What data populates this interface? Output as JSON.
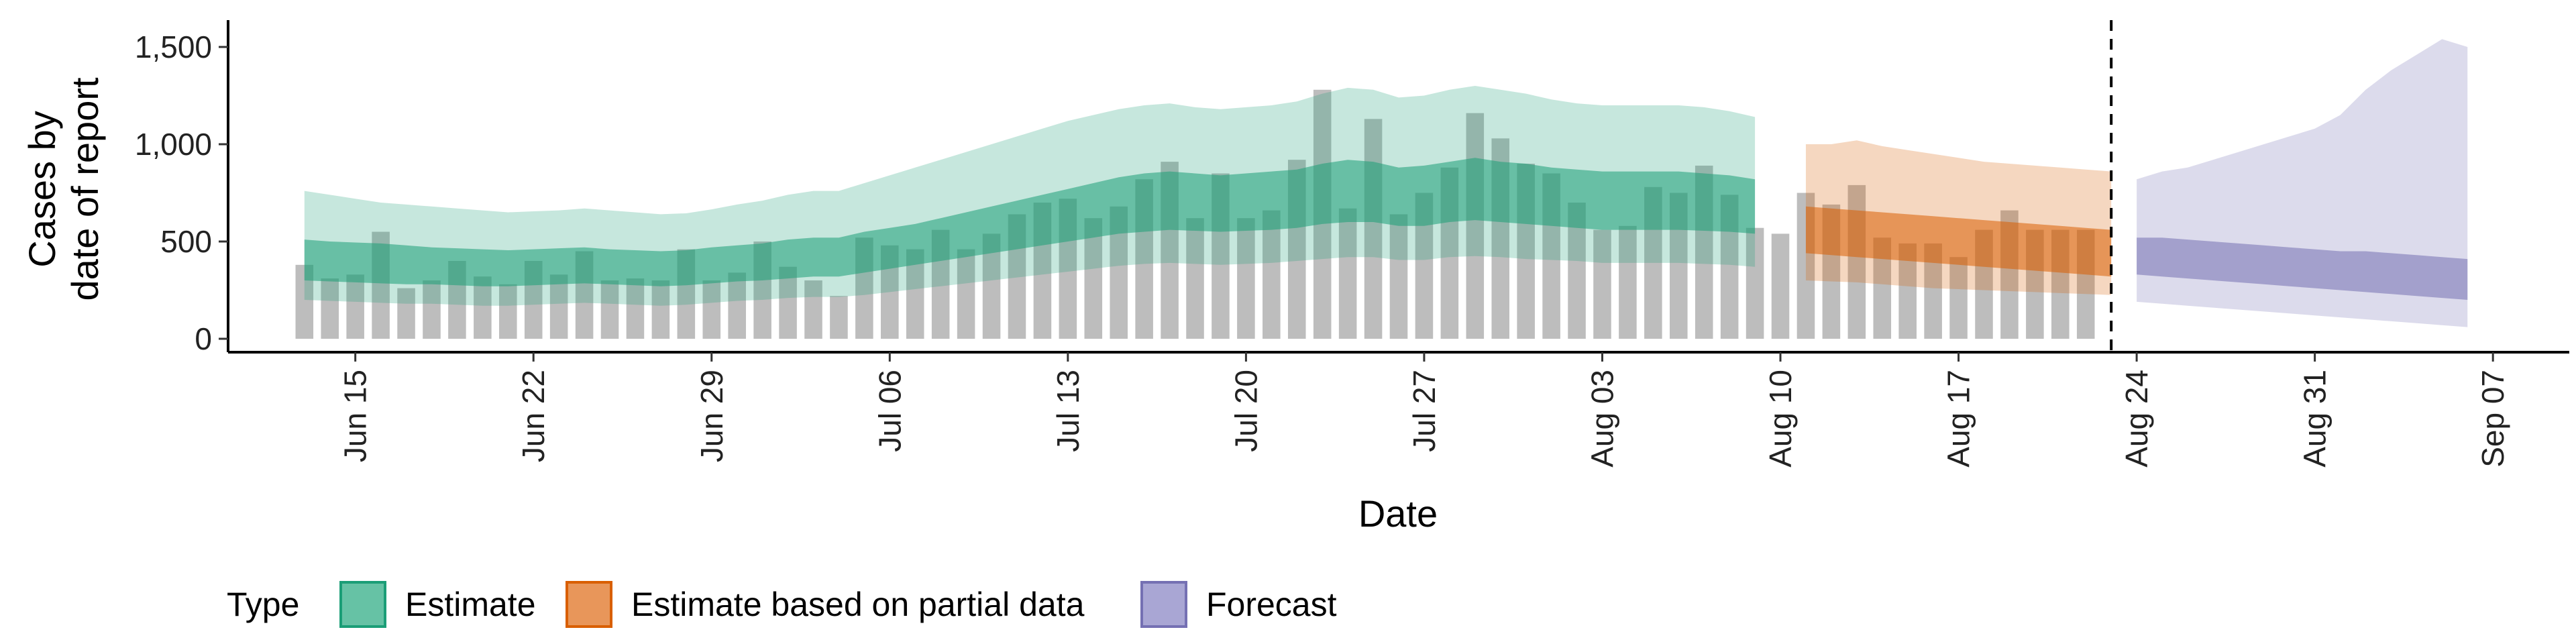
{
  "chart_data": {
    "type": "area",
    "xlabel": "Date",
    "ylabel_lines": [
      "Cases by",
      "date of report"
    ],
    "ylim": [
      0,
      1600
    ],
    "y_ticks": [
      0,
      500,
      1000,
      1500
    ],
    "y_tick_labels": [
      "0",
      "500",
      "1,000",
      "1,500"
    ],
    "x_domain": [
      "2020-06-10",
      "2020-09-10"
    ],
    "x_ticks": [
      "2020-06-15",
      "2020-06-22",
      "2020-06-29",
      "2020-07-06",
      "2020-07-13",
      "2020-07-20",
      "2020-07-27",
      "2020-08-03",
      "2020-08-10",
      "2020-08-17",
      "2020-08-24",
      "2020-08-31",
      "2020-09-07"
    ],
    "x_tick_labels": [
      "Jun 15",
      "Jun 22",
      "Jun 29",
      "Jul 06",
      "Jul 13",
      "Jul 20",
      "Jul 27",
      "Aug 03",
      "Aug 10",
      "Aug 17",
      "Aug 24",
      "Aug 31",
      "Sep 07"
    ],
    "forecast_date": "2020-08-23",
    "grid": false,
    "legend": {
      "position": "bottom",
      "title": "Type",
      "entries": [
        {
          "label": "Estimate",
          "fill": "#66c2a5",
          "stroke": "#1b9e77"
        },
        {
          "label": "Estimate based on partial data",
          "fill": "#e8965a",
          "stroke": "#d95f02"
        },
        {
          "label": "Forecast",
          "fill": "#a9a6d4",
          "stroke": "#7570b3"
        }
      ]
    },
    "reported_cases": {
      "color": "#bdbdbd",
      "start_date": "2020-06-13",
      "values": [
        380,
        310,
        330,
        550,
        260,
        300,
        400,
        320,
        280,
        400,
        330,
        450,
        300,
        310,
        300,
        460,
        300,
        340,
        500,
        370,
        300,
        220,
        520,
        480,
        460,
        560,
        460,
        540,
        640,
        700,
        720,
        620,
        680,
        820,
        910,
        620,
        850,
        620,
        660,
        920,
        1280,
        670,
        1130,
        640,
        750,
        880,
        1160,
        1030,
        900,
        850,
        700,
        560,
        580,
        780,
        750,
        890,
        740,
        570,
        540,
        750,
        690,
        790,
        520,
        490,
        490,
        420,
        560,
        660,
        560,
        560,
        560
      ]
    },
    "series": [
      {
        "name": "Estimate",
        "fill": "#1b9e77",
        "start_date": "2020-06-13",
        "inner_lower": [
          300,
          295,
          290,
          285,
          280,
          280,
          275,
          270,
          270,
          275,
          280,
          285,
          280,
          275,
          270,
          275,
          285,
          295,
          300,
          310,
          320,
          320,
          340,
          360,
          380,
          400,
          420,
          440,
          460,
          480,
          500,
          520,
          540,
          550,
          560,
          555,
          550,
          555,
          560,
          570,
          590,
          600,
          600,
          580,
          580,
          600,
          610,
          600,
          590,
          580,
          570,
          560,
          560,
          560,
          560,
          555,
          550,
          540
        ],
        "inner_upper": [
          510,
          500,
          495,
          490,
          480,
          470,
          465,
          460,
          455,
          460,
          465,
          470,
          460,
          455,
          450,
          455,
          470,
          480,
          490,
          510,
          520,
          520,
          550,
          570,
          590,
          620,
          650,
          680,
          710,
          740,
          770,
          800,
          830,
          850,
          860,
          850,
          840,
          850,
          860,
          870,
          900,
          920,
          910,
          880,
          890,
          910,
          930,
          910,
          900,
          880,
          870,
          860,
          860,
          860,
          860,
          850,
          840,
          820
        ],
        "outer_lower": [
          200,
          195,
          190,
          185,
          180,
          180,
          175,
          170,
          170,
          175,
          180,
          185,
          180,
          175,
          170,
          175,
          185,
          195,
          200,
          210,
          215,
          215,
          225,
          240,
          255,
          270,
          285,
          300,
          315,
          330,
          345,
          360,
          375,
          385,
          390,
          385,
          380,
          385,
          390,
          400,
          410,
          420,
          420,
          405,
          405,
          420,
          425,
          420,
          410,
          405,
          400,
          390,
          390,
          390,
          390,
          385,
          380,
          370
        ],
        "outer_upper": [
          760,
          740,
          720,
          700,
          690,
          680,
          670,
          660,
          650,
          655,
          660,
          670,
          660,
          650,
          640,
          645,
          665,
          690,
          710,
          740,
          760,
          760,
          800,
          840,
          880,
          920,
          960,
          1000,
          1040,
          1080,
          1120,
          1150,
          1180,
          1200,
          1210,
          1190,
          1180,
          1190,
          1200,
          1220,
          1260,
          1290,
          1280,
          1240,
          1250,
          1280,
          1300,
          1280,
          1260,
          1230,
          1210,
          1200,
          1200,
          1200,
          1200,
          1190,
          1170,
          1140
        ]
      },
      {
        "name": "Estimate based on partial data",
        "fill": "#d95f02",
        "start_date": "2020-08-11",
        "inner_lower": [
          440,
          430,
          420,
          410,
          400,
          390,
          380,
          370,
          360,
          350,
          340,
          330,
          320
        ],
        "inner_upper": [
          680,
          670,
          660,
          650,
          640,
          630,
          620,
          610,
          600,
          590,
          580,
          570,
          560
        ],
        "outer_lower": [
          300,
          295,
          290,
          280,
          270,
          260,
          255,
          250,
          245,
          240,
          235,
          230,
          225
        ],
        "outer_upper": [
          1000,
          1000,
          1020,
          990,
          970,
          950,
          930,
          910,
          900,
          890,
          880,
          870,
          860
        ]
      },
      {
        "name": "Forecast",
        "fill": "#7570b3",
        "start_date": "2020-08-24",
        "inner_lower": [
          330,
          320,
          310,
          300,
          290,
          280,
          270,
          260,
          250,
          240,
          230,
          220,
          210,
          200
        ],
        "inner_upper": [
          520,
          520,
          510,
          500,
          490,
          480,
          470,
          460,
          450,
          450,
          440,
          430,
          420,
          410
        ],
        "outer_lower": [
          190,
          180,
          170,
          160,
          150,
          140,
          130,
          120,
          110,
          100,
          90,
          80,
          70,
          60
        ],
        "outer_upper": [
          820,
          860,
          880,
          920,
          960,
          1000,
          1040,
          1080,
          1150,
          1280,
          1380,
          1460,
          1540,
          1500
        ]
      }
    ]
  }
}
